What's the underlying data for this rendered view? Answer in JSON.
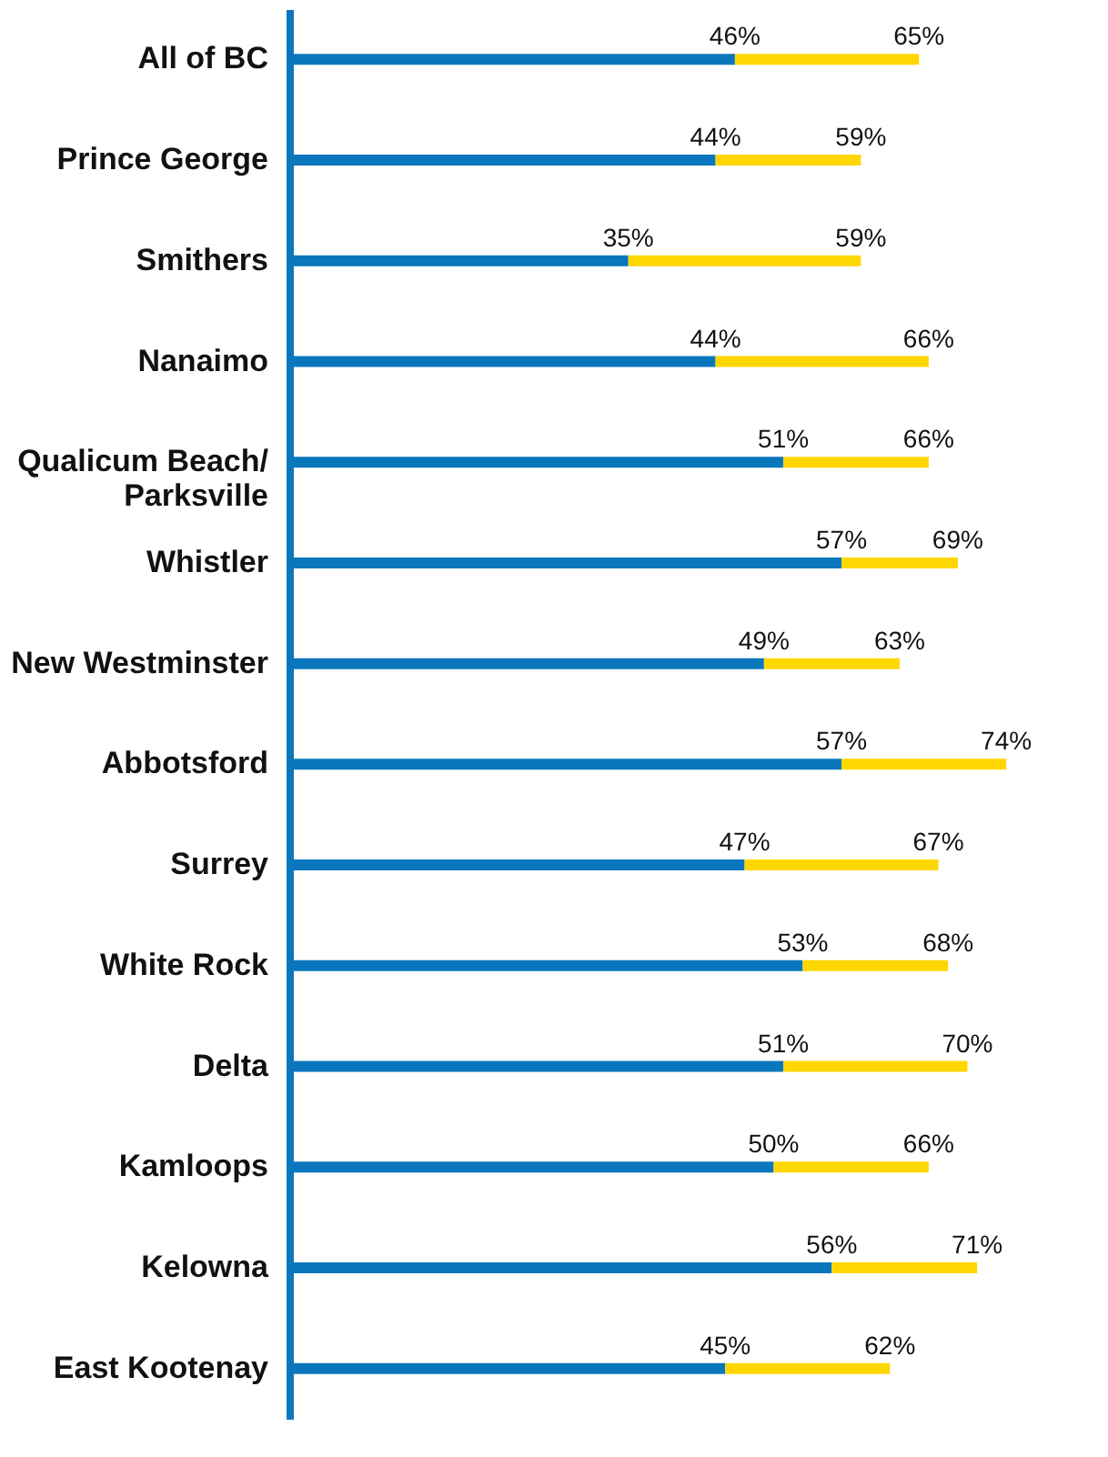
{
  "chart_data": {
    "type": "bar",
    "orientation": "horizontal",
    "stacked": true,
    "grid": false,
    "tick_labels": "y",
    "categories": [
      "All of BC",
      "Prince George",
      "Smithers",
      "Nanaimo",
      "Qualicum Beach/ Parksville",
      "Whistler",
      "New Westminster",
      "Abbotsford",
      "Surrey",
      "White Rock",
      "Delta",
      "Kamloops",
      "Kelowna",
      "East Kootenay"
    ],
    "series": [
      {
        "color": "#0a77bd",
        "values": [
          46,
          44,
          35,
          44,
          51,
          57,
          49,
          57,
          47,
          53,
          51,
          50,
          56,
          45
        ],
        "value_labels": [
          "46%",
          "44%",
          "35%",
          "44%",
          "51%",
          "57%",
          "49%",
          "57%",
          "47%",
          "53%",
          "51%",
          "50%",
          "56%",
          "45%"
        ]
      },
      {
        "color": "#ffd700",
        "values": [
          19,
          15,
          24,
          22,
          15,
          12,
          14,
          17,
          20,
          15,
          19,
          16,
          15,
          17
        ]
      }
    ],
    "totals": [
      "65%",
      "59%",
      "59%",
      "66%",
      "66%",
      "69%",
      "63%",
      "74%",
      "67%",
      "68%",
      "70%",
      "66%",
      "71%",
      "62%"
    ]
  }
}
